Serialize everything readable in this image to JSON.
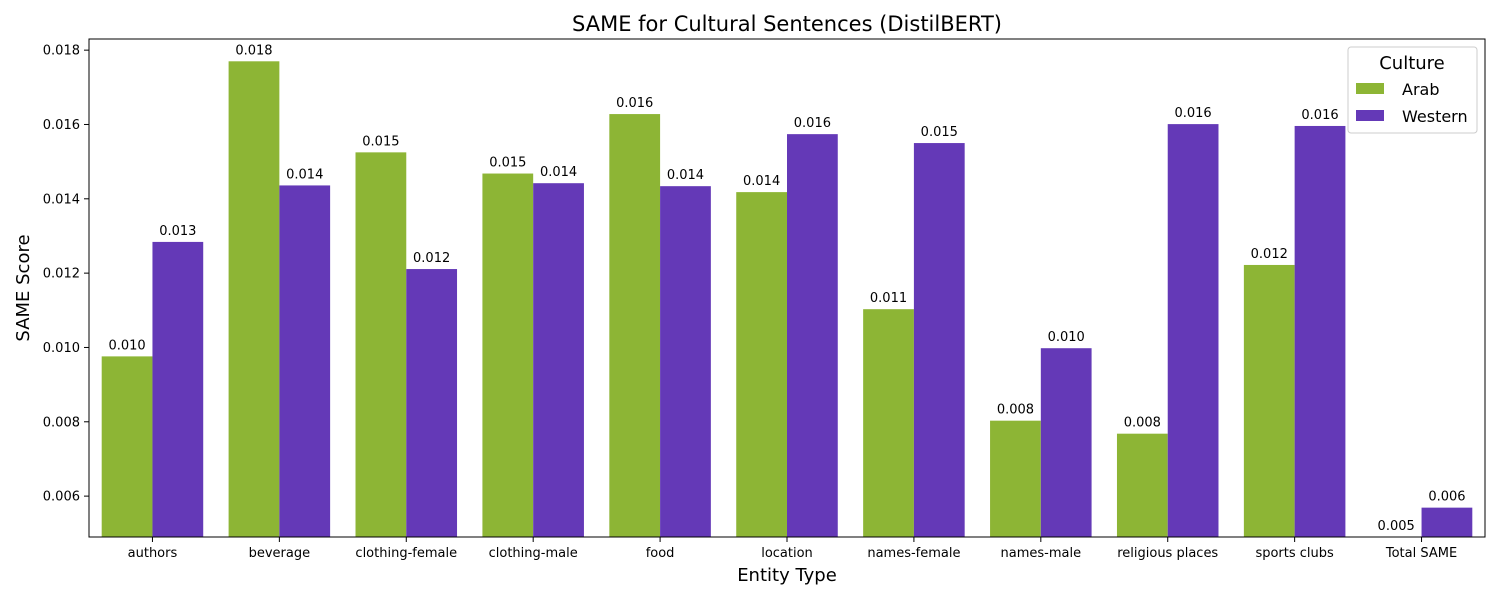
{
  "chart_data": {
    "type": "bar",
    "title": "SAME for Cultural Sentences (DistilBERT)",
    "xlabel": "Entity Type",
    "ylabel": "SAME Score",
    "ylim": [
      0.0049,
      0.0183
    ],
    "yticks": [
      "0.006",
      "0.008",
      "0.010",
      "0.012",
      "0.014",
      "0.016",
      "0.018"
    ],
    "categories": [
      "authors",
      "beverage",
      "clothing-female",
      "clothing-male",
      "food",
      "location",
      "names-female",
      "names-male",
      "religious places",
      "sports clubs",
      "Total SAME"
    ],
    "series": [
      {
        "name": "Arab",
        "color": "#8db535",
        "values": [
          0.00976,
          0.0177,
          0.01525,
          0.01468,
          0.01628,
          0.01418,
          0.01103,
          0.00803,
          0.00768,
          0.01222,
          0.0049
        ],
        "labels": [
          "0.010",
          "0.018",
          "0.015",
          "0.015",
          "0.016",
          "0.014",
          "0.011",
          "0.008",
          "0.008",
          "0.012",
          "0.005"
        ]
      },
      {
        "name": "Western",
        "color": "#6439b7",
        "values": [
          0.01284,
          0.01436,
          0.01211,
          0.01442,
          0.01434,
          0.01574,
          0.0155,
          0.00998,
          0.01601,
          0.01596,
          0.00569
        ],
        "labels": [
          "0.013",
          "0.014",
          "0.012",
          "0.014",
          "0.014",
          "0.016",
          "0.015",
          "0.010",
          "0.016",
          "0.016",
          "0.006"
        ]
      }
    ],
    "legend": {
      "title": "Culture",
      "position": "top-right"
    },
    "grid": false
  }
}
